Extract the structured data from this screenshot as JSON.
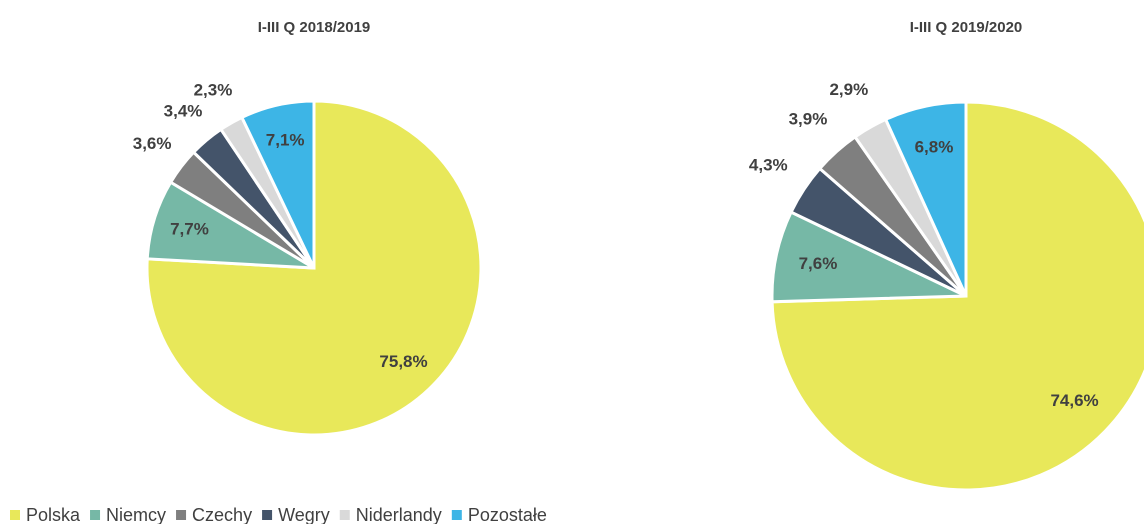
{
  "chart_data": [
    {
      "type": "pie",
      "title": "I-III Q 2018/2019",
      "values": [
        75.8,
        7.7,
        3.6,
        3.4,
        2.3,
        7.1
      ],
      "value_labels": [
        "75,8%",
        "7,7%",
        "3,6%",
        "3,4%",
        "2,3%",
        "7,1%"
      ],
      "colors": [
        "#e8e85a",
        "#76b8a6",
        "#7f7f7f",
        "#44546a",
        "#d9d9d9",
        "#3db5e6"
      ]
    },
    {
      "type": "pie",
      "title": "I-III Q 2019/2020",
      "values": [
        74.6,
        7.6,
        4.3,
        3.9,
        2.9,
        6.8
      ],
      "value_labels": [
        "74,6%",
        "7,6%",
        "4,3%",
        "3,9%",
        "2,9%",
        "6,8%"
      ],
      "colors": [
        "#e8e85a",
        "#76b8a6",
        "#44546a",
        "#7f7f7f",
        "#d9d9d9",
        "#3db5e6"
      ]
    }
  ],
  "legend": [
    {
      "name": "Polska",
      "color": "#e8e85a"
    },
    {
      "name": "Niemcy",
      "color": "#76b8a6"
    },
    {
      "name": "Czechy",
      "color": "#7f7f7f"
    },
    {
      "name": "Wegry",
      "color": "#44546a"
    },
    {
      "name": "Niderlandy",
      "color": "#d9d9d9"
    },
    {
      "name": "Pozostałe",
      "color": "#3db5e6"
    }
  ]
}
